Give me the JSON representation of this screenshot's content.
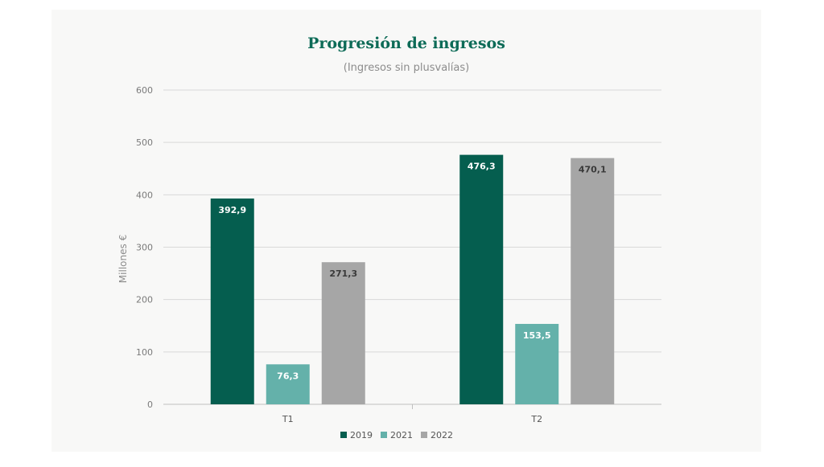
{
  "chart_data": {
    "type": "bar",
    "title": "Progresión de ingresos",
    "subtitle": "(Ingresos sin plusvalías)",
    "ylabel": "Millones €",
    "xlabel": "",
    "categories": [
      "T1",
      "T2"
    ],
    "ylim": [
      0,
      600
    ],
    "yticks": [
      0,
      100,
      200,
      300,
      400,
      500,
      600
    ],
    "grid": true,
    "legend_position": "bottom",
    "series": [
      {
        "name": "2019",
        "values": [
          392.9,
          476.3
        ],
        "labels": [
          "392,9",
          "476,3"
        ],
        "color": "#055e4f",
        "label_color": "#ffffff"
      },
      {
        "name": "2021",
        "values": [
          76.3,
          153.5
        ],
        "labels": [
          "76,3",
          "153,5"
        ],
        "color": "#64b1aa",
        "label_color": "#ffffff"
      },
      {
        "name": "2022",
        "values": [
          271.3,
          470.1
        ],
        "labels": [
          "271,3",
          "470,1"
        ],
        "color": "#a6a6a6",
        "label_color": "#3a3a3a"
      }
    ]
  }
}
